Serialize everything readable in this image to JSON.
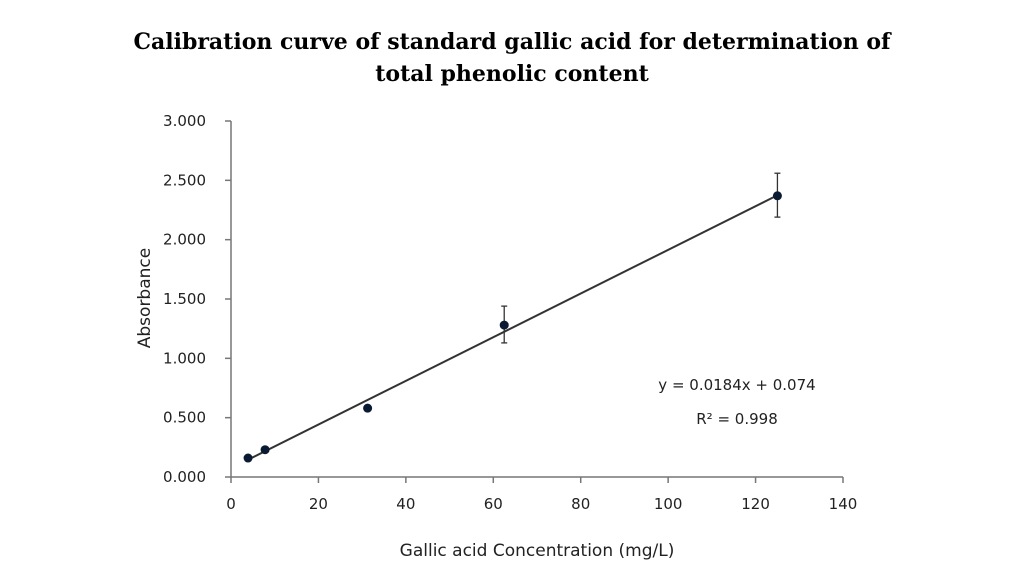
{
  "chart_data": {
    "type": "scatter",
    "title_line1": "Calibration curve of standard gallic acid for determination of",
    "title_line2": "total phenolic content",
    "xlabel": "Gallic acid Concentration (mg/L)",
    "ylabel": "Absorbance",
    "xlim": [
      0,
      140
    ],
    "ylim": [
      0,
      3
    ],
    "xticks": [
      "0",
      "20",
      "40",
      "60",
      "80",
      "100",
      "120",
      "140"
    ],
    "yticks": [
      "0.000",
      "0.500",
      "1.000",
      "1.500",
      "2.000",
      "2.500",
      "3.000"
    ],
    "grid": false,
    "points": [
      {
        "x": 3.9,
        "y": 0.16,
        "err_low": 0.16,
        "err_high": 0.16
      },
      {
        "x": 7.8,
        "y": 0.23,
        "err_low": 0.23,
        "err_high": 0.23
      },
      {
        "x": 31.25,
        "y": 0.58,
        "err_low": 0.58,
        "err_high": 0.58
      },
      {
        "x": 62.5,
        "y": 1.28,
        "err_low": 1.13,
        "err_high": 1.44
      },
      {
        "x": 125,
        "y": 2.37,
        "err_low": 2.19,
        "err_high": 2.56
      }
    ],
    "trendline": {
      "slope": 0.0184,
      "intercept": 0.074,
      "x_range": [
        3.9,
        125
      ]
    },
    "equation_label": "y = 0.0184x + 0.074",
    "r2_label": "R² = 0.998",
    "marker_color": "#0b1a33",
    "line_color": "#333333"
  }
}
